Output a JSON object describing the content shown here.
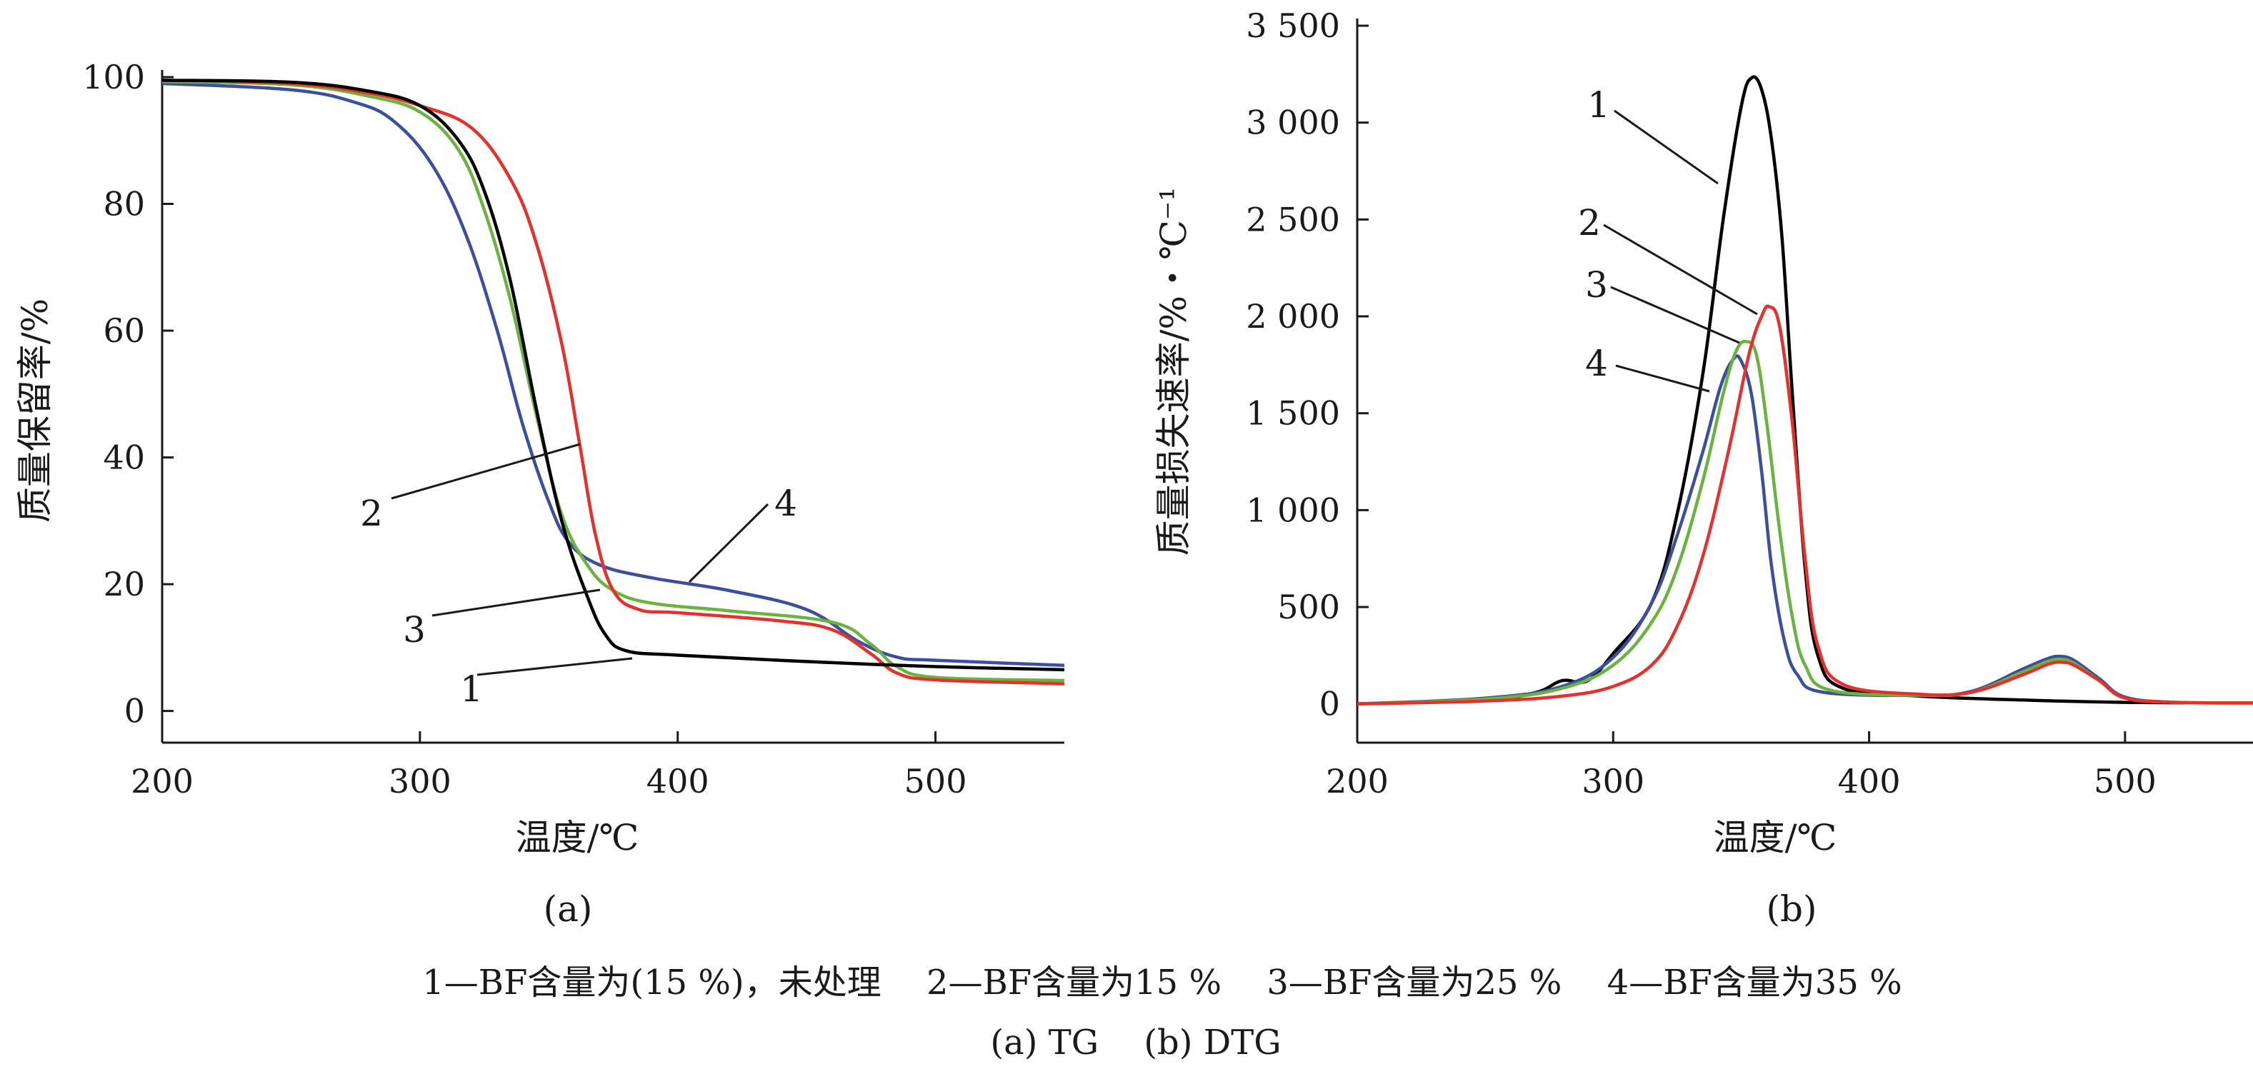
{
  "colors": {
    "series_1": "#000000",
    "series_2": "#e8302a",
    "series_3": "#6bb33f",
    "series_4": "#3b4fa0",
    "axis": "#1a1a1a"
  },
  "caption": {
    "legend_line": "1—BF含量为(15 %)，未处理　 2—BF含量为15 %　 3—BF含量为25 %　 4—BF含量为35 %",
    "parts_line": "(a) TG　 (b) DTG"
  },
  "chart_data": [
    {
      "type": "line",
      "panel_label": "(a)",
      "xlabel": "温度/℃",
      "ylabel": "质量保留率/%",
      "xlim": [
        200,
        550
      ],
      "ylim": [
        -5,
        100
      ],
      "x_ticks": [
        "200",
        "300",
        "400",
        "500"
      ],
      "y_ticks": [
        "0",
        "20",
        "40",
        "60",
        "80",
        "100"
      ],
      "grid": false,
      "legend": "curve number callouts",
      "series": [
        {
          "name": "1",
          "points": [
            [
              200,
              99.5
            ],
            [
              250,
              99.2
            ],
            [
              280,
              97.8
            ],
            [
              300,
              95.5
            ],
            [
              315,
              90
            ],
            [
              325,
              82
            ],
            [
              335,
              68
            ],
            [
              345,
              48
            ],
            [
              355,
              30
            ],
            [
              365,
              18
            ],
            [
              372,
              12
            ],
            [
              380,
              9.5
            ],
            [
              400,
              8.8
            ],
            [
              450,
              7.8
            ],
            [
              500,
              7.0
            ],
            [
              550,
              6.5
            ]
          ]
        },
        {
          "name": "2",
          "points": [
            [
              200,
              99.5
            ],
            [
              250,
              99
            ],
            [
              280,
              97.5
            ],
            [
              300,
              95.5
            ],
            [
              320,
              92
            ],
            [
              335,
              84
            ],
            [
              345,
              74
            ],
            [
              355,
              58
            ],
            [
              362,
              42
            ],
            [
              368,
              28
            ],
            [
              375,
              19
            ],
            [
              385,
              16
            ],
            [
              400,
              15.5
            ],
            [
              440,
              14.2
            ],
            [
              460,
              12.8
            ],
            [
              475,
              9
            ],
            [
              485,
              6
            ],
            [
              500,
              4.9
            ],
            [
              550,
              4.3
            ]
          ]
        },
        {
          "name": "3",
          "points": [
            [
              200,
              99.3
            ],
            [
              250,
              98.8
            ],
            [
              280,
              97
            ],
            [
              300,
              94.5
            ],
            [
              315,
              88.5
            ],
            [
              325,
              79
            ],
            [
              335,
              65
            ],
            [
              345,
              47
            ],
            [
              355,
              31
            ],
            [
              365,
              23
            ],
            [
              375,
              19
            ],
            [
              390,
              17
            ],
            [
              420,
              15.8
            ],
            [
              460,
              14
            ],
            [
              475,
              10.5
            ],
            [
              485,
              7
            ],
            [
              500,
              5.3
            ],
            [
              550,
              4.8
            ]
          ]
        },
        {
          "name": "4",
          "points": [
            [
              200,
              99
            ],
            [
              250,
              98
            ],
            [
              275,
              96
            ],
            [
              290,
              93
            ],
            [
              305,
              86
            ],
            [
              318,
              75
            ],
            [
              330,
              60
            ],
            [
              340,
              45
            ],
            [
              350,
              33
            ],
            [
              358,
              26.5
            ],
            [
              370,
              23
            ],
            [
              390,
              21
            ],
            [
              420,
              19
            ],
            [
              450,
              16
            ],
            [
              470,
              11
            ],
            [
              485,
              8.5
            ],
            [
              500,
              8
            ],
            [
              550,
              7.2
            ]
          ]
        }
      ],
      "annotations": [
        "1",
        "2",
        "3",
        "4"
      ]
    },
    {
      "type": "line",
      "panel_label": "(b)",
      "xlabel": "温度/℃",
      "ylabel": "质量损失速率/%・℃⁻¹",
      "xlim": [
        200,
        550
      ],
      "ylim": [
        -200,
        3500
      ],
      "x_ticks": [
        "200",
        "300",
        "400",
        "500"
      ],
      "y_ticks": [
        "0",
        "500",
        "1 000",
        "1 500",
        "2 000",
        "2 500",
        "3 000",
        "3 500"
      ],
      "grid": false,
      "legend": "curve number callouts",
      "series": [
        {
          "name": "1",
          "points": [
            [
              200,
              0
            ],
            [
              250,
              20
            ],
            [
              270,
              60
            ],
            [
              280,
              120
            ],
            [
              290,
              120
            ],
            [
              300,
              260
            ],
            [
              315,
              520
            ],
            [
              325,
              980
            ],
            [
              335,
              1700
            ],
            [
              343,
              2500
            ],
            [
              350,
              3080
            ],
            [
              354,
              3230
            ],
            [
              358,
              3170
            ],
            [
              362,
              2900
            ],
            [
              366,
              2400
            ],
            [
              370,
              1600
            ],
            [
              375,
              700
            ],
            [
              380,
              250
            ],
            [
              390,
              80
            ],
            [
              420,
              40
            ],
            [
              460,
              20
            ],
            [
              500,
              8
            ],
            [
              550,
              5
            ]
          ]
        },
        {
          "name": "2",
          "points": [
            [
              200,
              0
            ],
            [
              250,
              15
            ],
            [
              280,
              40
            ],
            [
              300,
              90
            ],
            [
              315,
              200
            ],
            [
              325,
              400
            ],
            [
              335,
              760
            ],
            [
              345,
              1300
            ],
            [
              353,
              1800
            ],
            [
              358,
              2000
            ],
            [
              361,
              2050
            ],
            [
              365,
              1950
            ],
            [
              370,
              1450
            ],
            [
              375,
              750
            ],
            [
              380,
              300
            ],
            [
              390,
              100
            ],
            [
              420,
              50
            ],
            [
              440,
              60
            ],
            [
              460,
              150
            ],
            [
              470,
              205
            ],
            [
              475,
              215
            ],
            [
              480,
              200
            ],
            [
              490,
              120
            ],
            [
              500,
              30
            ],
            [
              520,
              8
            ],
            [
              550,
              5
            ]
          ]
        },
        {
          "name": "3",
          "points": [
            [
              200,
              0
            ],
            [
              250,
              25
            ],
            [
              280,
              80
            ],
            [
              300,
              200
            ],
            [
              315,
              420
            ],
            [
              325,
              700
            ],
            [
              335,
              1150
            ],
            [
              343,
              1600
            ],
            [
              348,
              1820
            ],
            [
              352,
              1870
            ],
            [
              356,
              1800
            ],
            [
              360,
              1450
            ],
            [
              365,
              900
            ],
            [
              370,
              450
            ],
            [
              375,
              200
            ],
            [
              385,
              70
            ],
            [
              420,
              45
            ],
            [
              440,
              60
            ],
            [
              460,
              165
            ],
            [
              470,
              220
            ],
            [
              475,
              230
            ],
            [
              480,
              210
            ],
            [
              490,
              120
            ],
            [
              500,
              30
            ],
            [
              520,
              8
            ],
            [
              550,
              5
            ]
          ]
        },
        {
          "name": "4",
          "points": [
            [
              200,
              0
            ],
            [
              250,
              30
            ],
            [
              280,
              90
            ],
            [
              300,
              240
            ],
            [
              315,
              520
            ],
            [
              325,
              870
            ],
            [
              335,
              1300
            ],
            [
              342,
              1640
            ],
            [
              347,
              1780
            ],
            [
              350,
              1770
            ],
            [
              354,
              1600
            ],
            [
              358,
              1200
            ],
            [
              362,
              700
            ],
            [
              367,
              320
            ],
            [
              372,
              150
            ],
            [
              382,
              60
            ],
            [
              420,
              45
            ],
            [
              440,
              65
            ],
            [
              460,
              180
            ],
            [
              470,
              235
            ],
            [
              475,
              245
            ],
            [
              480,
              225
            ],
            [
              490,
              130
            ],
            [
              500,
              35
            ],
            [
              520,
              8
            ],
            [
              550,
              5
            ]
          ]
        }
      ],
      "annotations": [
        "1",
        "2",
        "3",
        "4"
      ]
    }
  ]
}
